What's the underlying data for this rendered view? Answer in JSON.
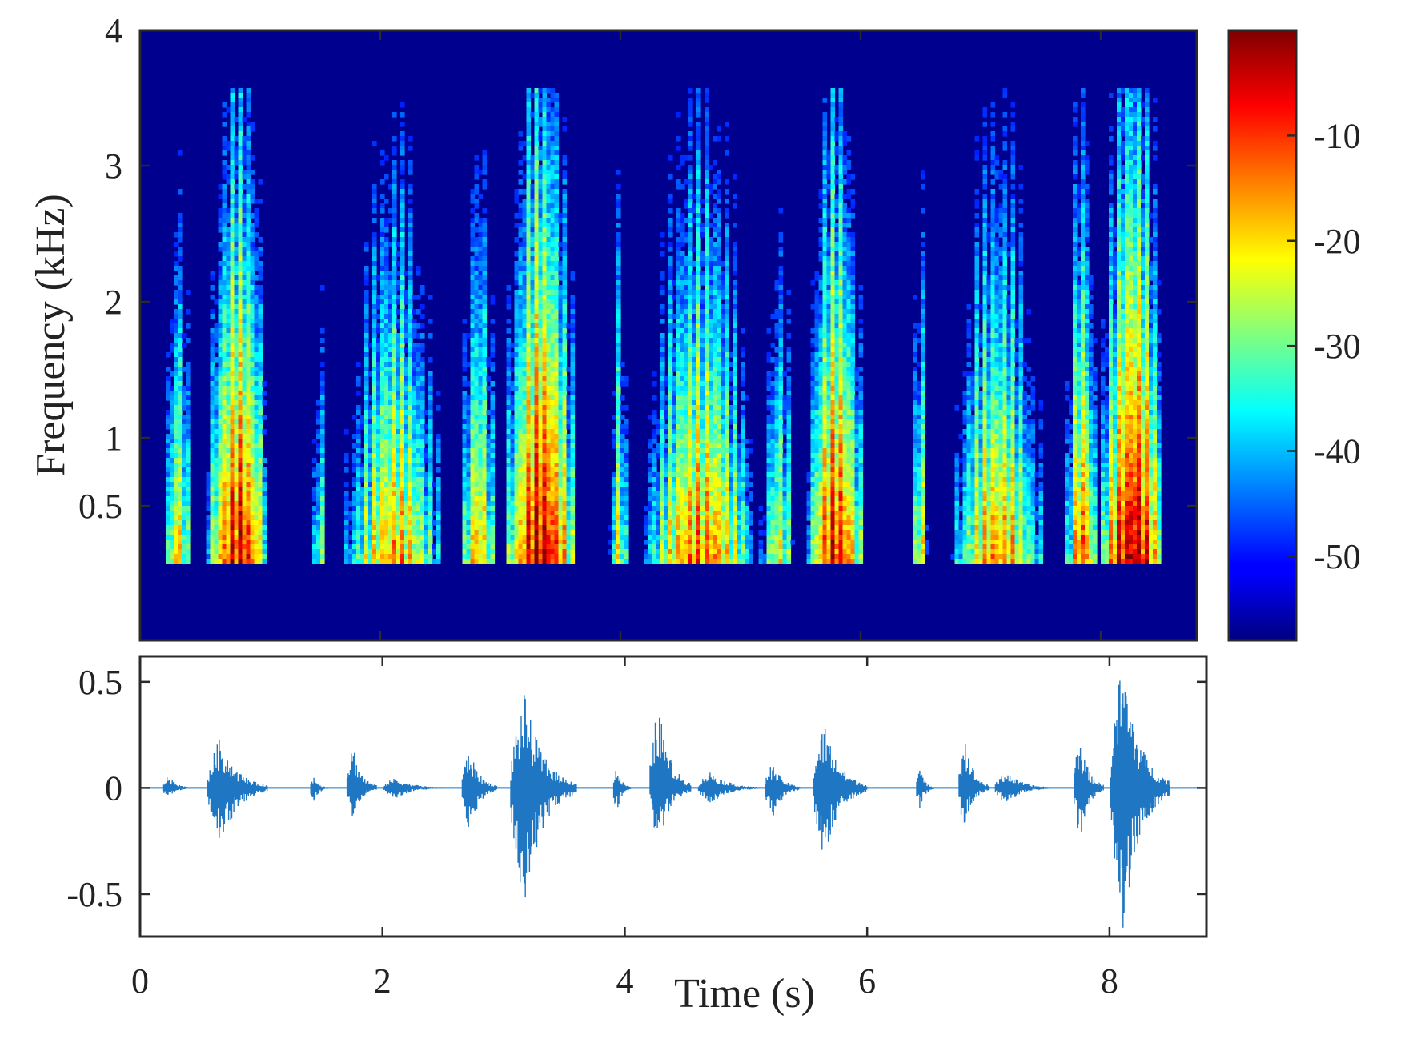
{
  "chart_data": [
    {
      "type": "heatmap",
      "title": "",
      "xlabel": "",
      "ylabel": "Frequency (kHz)",
      "xlim": [
        0,
        8.8
      ],
      "ylim": [
        0.1,
        4
      ],
      "y_ticks": [
        0.5,
        1,
        2,
        3,
        4
      ],
      "y_tick_labels": [
        "0.5",
        "1",
        "2",
        "3",
        "4"
      ],
      "colormap": "jet",
      "colorbar": {
        "range": [
          -58,
          0
        ],
        "ticks": [
          -10,
          -20,
          -30,
          -40,
          -50
        ],
        "tick_labels": [
          "-10",
          "-20",
          "-30",
          "-40",
          "-50"
        ]
      },
      "background_level_db": -58,
      "bursts": [
        {
          "start": 0.18,
          "end": 0.42,
          "peak_db": -18
        },
        {
          "start": 0.55,
          "end": 1.05,
          "peak_db": -5
        },
        {
          "start": 1.4,
          "end": 1.55,
          "peak_db": -28
        },
        {
          "start": 1.7,
          "end": 2.5,
          "peak_db": -15
        },
        {
          "start": 2.65,
          "end": 2.95,
          "peak_db": -15
        },
        {
          "start": 3.05,
          "end": 3.6,
          "peak_db": -2
        },
        {
          "start": 3.9,
          "end": 4.05,
          "peak_db": -20
        },
        {
          "start": 4.2,
          "end": 5.1,
          "peak_db": -12
        },
        {
          "start": 5.15,
          "end": 5.45,
          "peak_db": -22
        },
        {
          "start": 5.55,
          "end": 6.0,
          "peak_db": -6
        },
        {
          "start": 6.4,
          "end": 6.55,
          "peak_db": -20
        },
        {
          "start": 6.75,
          "end": 7.5,
          "peak_db": -14
        },
        {
          "start": 7.7,
          "end": 7.95,
          "peak_db": -10
        },
        {
          "start": 8.0,
          "end": 8.5,
          "peak_db": -1
        }
      ]
    },
    {
      "type": "line",
      "title": "",
      "xlabel": "Time (s)",
      "ylabel": "",
      "xlim": [
        0,
        8.8
      ],
      "ylim": [
        -0.7,
        0.62
      ],
      "x_ticks": [
        0,
        2,
        4,
        6,
        8
      ],
      "x_tick_labels": [
        "0",
        "2",
        "4",
        "6",
        "8"
      ],
      "y_ticks": [
        0.5,
        0,
        -0.5
      ],
      "y_tick_labels": [
        "0.5",
        "0",
        "-0.5"
      ],
      "color": "#1f77c4",
      "envelope": [
        {
          "start": 0.18,
          "end": 0.42,
          "peak": 0.06,
          "trough": -0.05
        },
        {
          "start": 0.55,
          "end": 1.05,
          "peak": 0.24,
          "trough": -0.3
        },
        {
          "start": 1.4,
          "end": 1.55,
          "peak": 0.06,
          "trough": -0.07
        },
        {
          "start": 1.7,
          "end": 1.95,
          "peak": 0.22,
          "trough": -0.15
        },
        {
          "start": 2.0,
          "end": 2.5,
          "peak": 0.05,
          "trough": -0.05
        },
        {
          "start": 2.65,
          "end": 2.95,
          "peak": 0.19,
          "trough": -0.22
        },
        {
          "start": 3.05,
          "end": 3.6,
          "peak": 0.45,
          "trough": -0.55
        },
        {
          "start": 3.9,
          "end": 4.05,
          "peak": 0.1,
          "trough": -0.12
        },
        {
          "start": 4.2,
          "end": 4.55,
          "peak": 0.4,
          "trough": -0.29
        },
        {
          "start": 4.6,
          "end": 5.1,
          "peak": 0.08,
          "trough": -0.08
        },
        {
          "start": 5.15,
          "end": 5.45,
          "peak": 0.12,
          "trough": -0.15
        },
        {
          "start": 5.55,
          "end": 6.0,
          "peak": 0.31,
          "trough": -0.35
        },
        {
          "start": 6.4,
          "end": 6.55,
          "peak": 0.1,
          "trough": -0.1
        },
        {
          "start": 6.75,
          "end": 7.0,
          "peak": 0.26,
          "trough": -0.2
        },
        {
          "start": 7.05,
          "end": 7.5,
          "peak": 0.08,
          "trough": -0.08
        },
        {
          "start": 7.7,
          "end": 7.95,
          "peak": 0.26,
          "trough": -0.26
        },
        {
          "start": 8.0,
          "end": 8.5,
          "peak": 0.62,
          "trough": -0.7
        }
      ]
    }
  ]
}
